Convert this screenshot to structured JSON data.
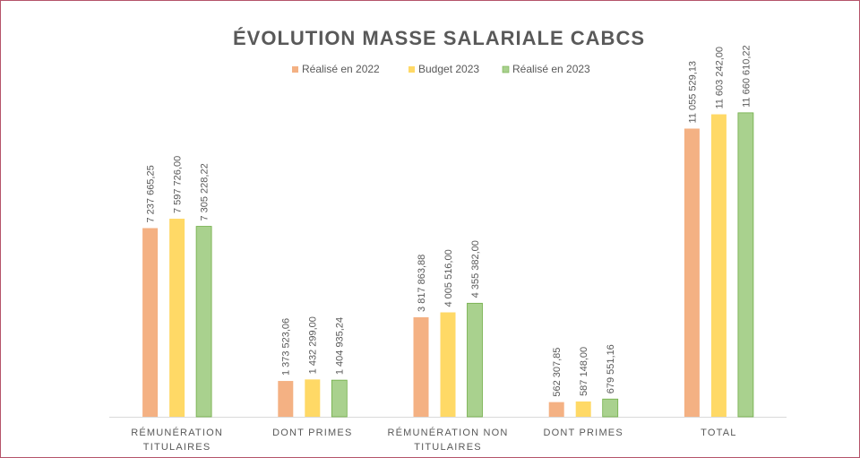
{
  "chart_data": {
    "type": "bar",
    "title": "ÉVOLUTION MASSE SALARIALE CABCS",
    "categories": [
      "RÉMUNÉRATION TITULAIRES",
      "DONT PRIMES",
      "RÉMUNÉRATION NON TITULAIRES",
      "DONT PRIMES",
      "TOTAL"
    ],
    "series": [
      {
        "name": "Réalisé en 2022",
        "color": "#f4b183",
        "values": [
          7237665.25,
          1373523.06,
          3817863.88,
          562307.85,
          11055529.13
        ],
        "value_labels": [
          "7 237 665,25",
          "1 373 523,06",
          "3 817 863,88",
          "562 307,85",
          "11 055 529,13"
        ]
      },
      {
        "name": "Budget 2023",
        "color": "#ffd966",
        "values": [
          7597726.0,
          1432299.0,
          4005516.0,
          587148.0,
          11603242.0
        ],
        "value_labels": [
          "7 597 726,00",
          "1 432 299,00",
          "4 005 516,00",
          "587 148,00",
          "11 603 242,00"
        ]
      },
      {
        "name": "Réalisé en 2023",
        "color": "#a9d18e",
        "values": [
          7305228.22,
          1404935.24,
          4355382.0,
          679551.16,
          11660610.22
        ],
        "value_labels": [
          "7 305 228,22",
          "1 404 935,24",
          "4 355 382,00",
          "679 551,16",
          "11 660 610,22"
        ]
      }
    ],
    "ylim": [
      0,
      12000000
    ],
    "legend": "top"
  }
}
